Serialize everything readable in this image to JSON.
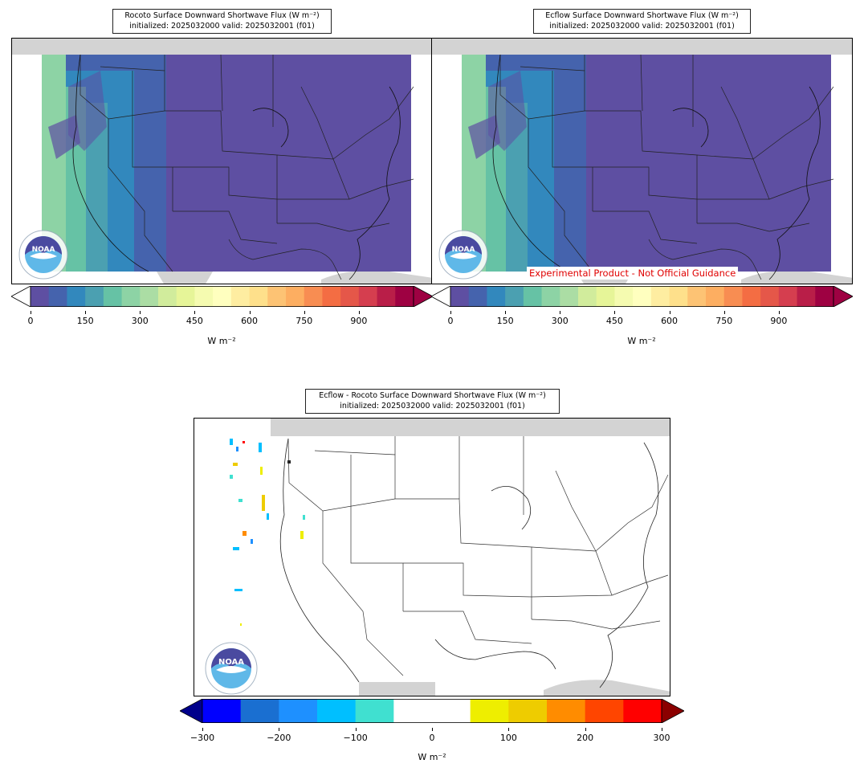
{
  "panels": [
    {
      "id": "rocoto",
      "title_line1": "Rocoto Surface Downward Shortwave Flux (W m⁻²)",
      "title_line2": "initialized: 2025032000 valid: 2025032001 (f01)",
      "colorbar_ticks": [
        "0",
        "150",
        "300",
        "450",
        "600",
        "750",
        "900"
      ],
      "units": "W m⁻²"
    },
    {
      "id": "ecflow",
      "title_line1": "Ecflow Surface Downward Shortwave Flux (W m⁻²)",
      "title_line2": "initialized: 2025032000 valid: 2025032001 (f01)",
      "colorbar_ticks": [
        "0",
        "150",
        "300",
        "450",
        "600",
        "750",
        "900"
      ],
      "units": "W m⁻²",
      "disclaimer": "Experimental Product - Not Official Guidance"
    },
    {
      "id": "difference",
      "title_line1": "Ecflow - Rocoto Surface Downward Shortwave Flux (W m⁻²)",
      "title_line2": "initialized: 2025032000 valid: 2025032001 (f01)",
      "colorbar_ticks": [
        "−300",
        "−200",
        "−100",
        "0",
        "100",
        "200",
        "300"
      ],
      "units": "W m⁻²"
    }
  ],
  "logo_text": "NOAA",
  "flux_colors": [
    "#5e4fa2",
    "#4563ad",
    "#3288bd",
    "#4ba0b1",
    "#66c2a5",
    "#8dd3a5",
    "#abdda4",
    "#d1ec9c",
    "#e6f598",
    "#f5fbb0",
    "#ffffbf",
    "#feeda1",
    "#fee08b",
    "#fdc374",
    "#fdae61",
    "#f88d52",
    "#f46d43",
    "#e55749",
    "#d53e4f",
    "#b91e48",
    "#9e0142"
  ],
  "diff_colors": [
    "#00008b",
    "#0000ff",
    "#1a6fd1",
    "#1e90ff",
    "#00bfff",
    "#40e0d0",
    "#ffffff",
    "#ffffff",
    "#eeee00",
    "#eecc00",
    "#ff8c00",
    "#ff4500",
    "#ff0000",
    "#8b0000"
  ]
}
